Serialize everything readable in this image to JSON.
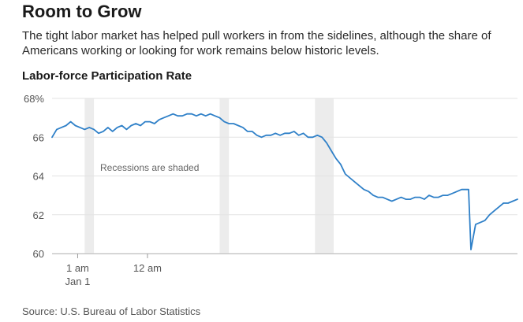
{
  "header": {
    "title": "Room to Grow",
    "subtitle": "The tight labor market has helped pull workers in from the sidelines, although the share of Americans working or looking for work remains below historic levels.",
    "source": "Source: U.S. Bureau of Labor Statistics"
  },
  "colors": {
    "line": "#2f80c8",
    "recession": "#ececec",
    "grid": "#e3e3e3",
    "text": "#555555"
  },
  "chart_data": {
    "type": "line",
    "title": "Labor-force Participation Rate",
    "annotation": "Recessions are shaded",
    "ylim": [
      60,
      68
    ],
    "y_ticks": [
      {
        "value": 68,
        "label": "68%"
      },
      {
        "value": 66,
        "label": "66"
      },
      {
        "value": 64,
        "label": "64"
      },
      {
        "value": 62,
        "label": "62"
      },
      {
        "value": 60,
        "label": "60"
      }
    ],
    "xlim": [
      0,
      100
    ],
    "x_ticks": [
      {
        "x": 5.5,
        "label": "1 am",
        "sublabel": "Jan 1"
      },
      {
        "x": 20.5,
        "label": "12 am",
        "sublabel": ""
      }
    ],
    "recessions": [
      [
        7,
        9
      ],
      [
        36,
        38
      ],
      [
        56.5,
        60.5
      ]
    ],
    "grid": true,
    "series": [
      {
        "x": [
          0,
          1,
          2,
          3,
          4,
          5,
          6,
          7,
          8,
          9,
          10,
          11,
          12,
          13,
          14,
          15,
          16,
          17,
          18,
          19,
          20,
          21,
          22,
          23,
          24,
          25,
          26,
          27,
          28,
          29,
          30,
          31,
          32,
          33,
          34,
          35,
          36,
          37,
          38,
          39,
          40,
          41,
          42,
          43,
          44,
          45,
          46,
          47,
          48,
          49,
          50,
          51,
          52,
          53,
          54,
          55,
          56,
          57,
          58,
          59,
          60,
          61,
          62,
          63,
          64,
          65,
          66,
          67,
          68,
          69,
          70,
          71,
          72,
          73,
          74,
          75,
          76,
          77,
          78,
          79,
          80,
          81,
          82,
          83,
          84,
          85,
          86,
          87,
          88,
          89,
          89.5,
          90,
          91,
          92,
          93,
          94,
          95,
          96,
          97,
          98,
          99,
          100
        ],
        "y": [
          66.0,
          66.4,
          66.5,
          66.6,
          66.8,
          66.6,
          66.5,
          66.4,
          66.5,
          66.4,
          66.2,
          66.3,
          66.5,
          66.3,
          66.5,
          66.6,
          66.4,
          66.6,
          66.7,
          66.6,
          66.8,
          66.8,
          66.7,
          66.9,
          67.0,
          67.1,
          67.2,
          67.1,
          67.1,
          67.2,
          67.2,
          67.1,
          67.2,
          67.1,
          67.2,
          67.1,
          67.0,
          66.8,
          66.7,
          66.7,
          66.6,
          66.5,
          66.3,
          66.3,
          66.1,
          66.0,
          66.1,
          66.1,
          66.2,
          66.1,
          66.2,
          66.2,
          66.3,
          66.1,
          66.2,
          66.0,
          66.0,
          66.1,
          66.0,
          65.7,
          65.3,
          64.9,
          64.6,
          64.1,
          63.9,
          63.7,
          63.5,
          63.3,
          63.2,
          63.0,
          62.9,
          62.9,
          62.8,
          62.7,
          62.8,
          62.9,
          62.8,
          62.8,
          62.9,
          62.9,
          62.8,
          63.0,
          62.9,
          62.9,
          63.0,
          63.0,
          63.1,
          63.2,
          63.3,
          63.3,
          63.3,
          60.2,
          61.5,
          61.6,
          61.7,
          62.0,
          62.2,
          62.4,
          62.6,
          62.6,
          62.7,
          62.8
        ]
      }
    ]
  }
}
